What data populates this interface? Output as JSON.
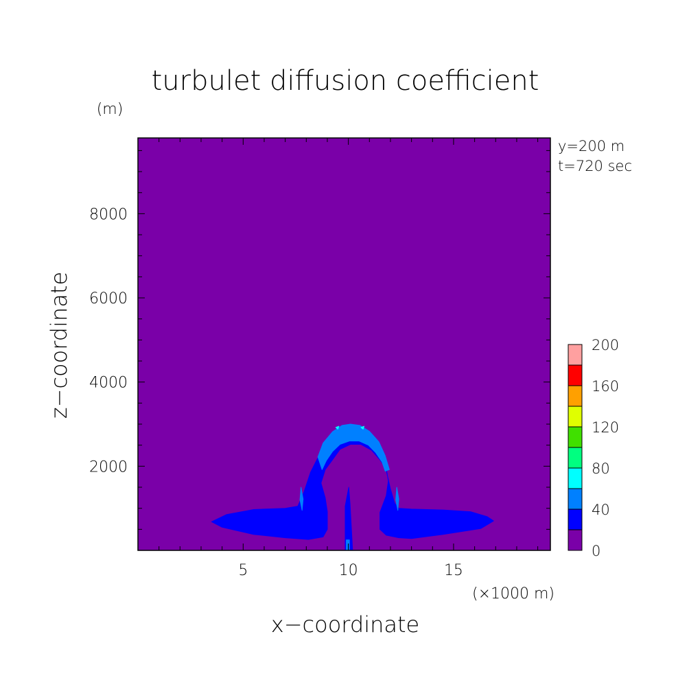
{
  "chart_data": {
    "type": "contour",
    "title": "turbulet diffusion coefficient",
    "y_unit": "(m)",
    "x_unit": "(×1000 m)",
    "xlabel": "x−coordinate",
    "ylabel": "z−coordinate",
    "annotations": [
      "y=200 m",
      "t=720 sec"
    ],
    "xlim": [
      0,
      19.6
    ],
    "ylim": [
      0,
      9800
    ],
    "x_ticks": [
      5,
      10,
      15
    ],
    "y_ticks": [
      2000,
      4000,
      6000,
      8000
    ],
    "colorbar": {
      "levels": [
        0,
        20,
        40,
        60,
        80,
        100,
        120,
        140,
        160,
        180,
        200
      ],
      "labels": [
        "0",
        "40",
        "80",
        "120",
        "160",
        "200"
      ],
      "colors": [
        "#7a00a8",
        "#0000ff",
        "#0080ff",
        "#00ffff",
        "#00ff80",
        "#40e000",
        "#e0ff00",
        "#ffa000",
        "#ff0000",
        "#ffa0a0"
      ]
    },
    "regions": [
      {
        "level": "20-40",
        "color": "#0000ff",
        "polygons": [
          [
            [
              9.6,
              2.6
            ],
            [
              9.9,
              2.72
            ],
            [
              10.4,
              2.72
            ],
            [
              10.9,
              2.6
            ],
            [
              11.4,
              2.32
            ],
            [
              11.8,
              1.9
            ],
            [
              12.0,
              1.46
            ],
            [
              12.2,
              1.12
            ],
            [
              12.4,
              1.0
            ],
            [
              13.0,
              0.98
            ],
            [
              14.5,
              0.96
            ],
            [
              15.8,
              0.92
            ],
            [
              16.6,
              0.8
            ],
            [
              16.9,
              0.7
            ],
            [
              16.3,
              0.52
            ],
            [
              14.5,
              0.38
            ],
            [
              13.0,
              0.28
            ],
            [
              12.4,
              0.3
            ],
            [
              11.8,
              0.36
            ],
            [
              11.5,
              0.5
            ],
            [
              11.5,
              0.9
            ],
            [
              11.8,
              1.3
            ],
            [
              11.9,
              1.65
            ],
            [
              11.8,
              1.95
            ],
            [
              11.5,
              2.15
            ],
            [
              11.1,
              2.38
            ],
            [
              10.6,
              2.52
            ],
            [
              10.1,
              2.52
            ],
            [
              9.6,
              2.4
            ],
            [
              9.2,
              2.12
            ],
            [
              8.9,
              1.92
            ],
            [
              8.7,
              1.6
            ],
            [
              8.9,
              1.25
            ],
            [
              9.0,
              0.92
            ],
            [
              9.0,
              0.5
            ],
            [
              8.8,
              0.32
            ],
            [
              8.1,
              0.26
            ],
            [
              7.0,
              0.3
            ],
            [
              5.5,
              0.38
            ],
            [
              4.0,
              0.55
            ],
            [
              3.5,
              0.68
            ],
            [
              4.2,
              0.85
            ],
            [
              5.5,
              0.97
            ],
            [
              7.0,
              1.0
            ],
            [
              7.6,
              1.05
            ],
            [
              7.9,
              1.4
            ],
            [
              8.2,
              1.85
            ],
            [
              8.6,
              2.25
            ],
            [
              9.1,
              2.48
            ]
          ],
          [
            [
              9.85,
              1.05
            ],
            [
              10.02,
              1.5
            ],
            [
              10.08,
              1.1
            ],
            [
              10.2,
              0.0
            ],
            [
              9.85,
              0.0
            ]
          ]
        ]
      },
      {
        "level": "40-60",
        "color": "#0080ff",
        "polygons": [
          [
            [
              8.55,
              2.22
            ],
            [
              8.8,
              2.55
            ],
            [
              9.25,
              2.82
            ],
            [
              9.7,
              2.97
            ],
            [
              10.1,
              3.0
            ],
            [
              10.55,
              2.97
            ],
            [
              11.0,
              2.83
            ],
            [
              11.45,
              2.58
            ],
            [
              11.75,
              2.25
            ],
            [
              11.95,
              1.92
            ],
            [
              11.75,
              1.88
            ],
            [
              11.6,
              2.1
            ],
            [
              11.3,
              2.32
            ],
            [
              10.95,
              2.5
            ],
            [
              10.5,
              2.6
            ],
            [
              10.05,
              2.6
            ],
            [
              9.6,
              2.52
            ],
            [
              9.25,
              2.35
            ],
            [
              8.95,
              2.13
            ],
            [
              8.75,
              1.92
            ]
          ],
          [
            [
              7.75,
              1.5
            ],
            [
              7.85,
              1.22
            ],
            [
              7.8,
              0.95
            ],
            [
              7.7,
              1.2
            ]
          ],
          [
            [
              12.3,
              1.5
            ],
            [
              12.4,
              1.22
            ],
            [
              12.35,
              0.95
            ],
            [
              12.25,
              1.2
            ]
          ],
          [
            [
              9.9,
              0.25
            ],
            [
              10.05,
              0.25
            ],
            [
              10.05,
              0.0
            ],
            [
              9.9,
              0.0
            ]
          ]
        ]
      },
      {
        "level": "60-80",
        "color": "#00ffff",
        "polygons": [
          [
            [
              9.4,
              2.92
            ],
            [
              9.55,
              2.95
            ],
            [
              9.5,
              2.88
            ]
          ],
          [
            [
              10.6,
              2.92
            ],
            [
              10.75,
              2.95
            ],
            [
              10.7,
              2.88
            ]
          ]
        ]
      }
    ]
  }
}
